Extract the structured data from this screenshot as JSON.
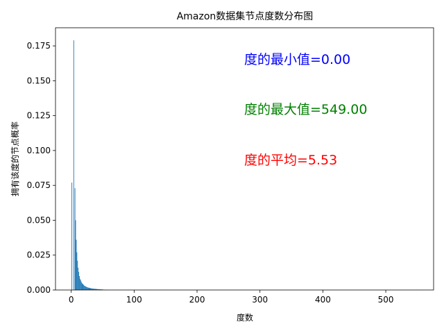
{
  "chart_data": {
    "type": "bar",
    "title": "Amazon数据集节点度数分布图",
    "xlabel": "度数",
    "ylabel": "拥有该度的节点概率",
    "xlim": [
      -25,
      576
    ],
    "ylim": [
      0,
      0.188
    ],
    "xticks": [
      0,
      100,
      200,
      300,
      400,
      500
    ],
    "yticks": [
      0.0,
      0.025,
      0.05,
      0.075,
      0.1,
      0.125,
      0.15,
      0.175
    ],
    "color": "#1f77b4",
    "x": [
      1,
      2,
      3,
      4,
      5,
      6,
      7,
      8,
      9,
      10,
      11,
      12,
      13,
      14,
      15,
      16,
      17,
      18,
      19,
      20,
      21,
      22,
      23,
      24,
      25,
      26,
      27,
      28,
      29,
      30,
      31,
      32,
      33,
      34,
      35,
      36,
      37,
      38,
      39,
      40,
      41,
      42,
      43,
      44,
      45,
      46,
      47,
      48,
      49,
      50,
      52,
      55,
      58,
      60,
      65,
      70,
      80,
      90,
      100,
      120,
      150,
      200,
      300,
      549
    ],
    "values": [
      0.077,
      0.0,
      0.0,
      0.179,
      0.0,
      0.073,
      0.05,
      0.036,
      0.027,
      0.021,
      0.016,
      0.013,
      0.01,
      0.008,
      0.007,
      0.006,
      0.005,
      0.0045,
      0.004,
      0.0035,
      0.003,
      0.0028,
      0.0025,
      0.0023,
      0.002,
      0.0019,
      0.0017,
      0.0016,
      0.0015,
      0.0014,
      0.0013,
      0.0012,
      0.0011,
      0.001,
      0.001,
      0.0009,
      0.0009,
      0.0008,
      0.0008,
      0.0007,
      0.0007,
      0.0006,
      0.0006,
      0.0006,
      0.0005,
      0.0005,
      0.0005,
      0.0004,
      0.0004,
      0.0004,
      0.0003,
      0.0003,
      0.0002,
      0.0002,
      0.0002,
      0.00015,
      0.0001,
      0.0001,
      8e-05,
      5e-05,
      3e-05,
      2e-05,
      1e-05,
      1e-05
    ]
  },
  "annotations": {
    "min": {
      "text": "度的最小值=0.00",
      "color": "#0000ff"
    },
    "max": {
      "text": "度的最大值=549.00",
      "color": "#008000"
    },
    "avg": {
      "text": "度的平均=5.53",
      "color": "#ff0000"
    }
  }
}
